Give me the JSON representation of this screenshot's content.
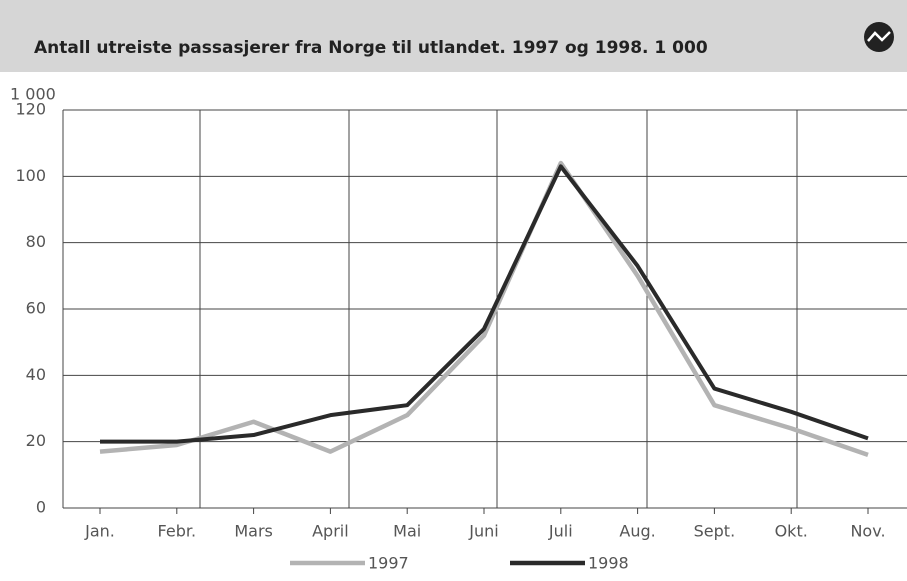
{
  "chart_data": {
    "type": "line",
    "title": "Antall utreiste passasjerer fra Norge til utlandet. 1997 og 1998. 1 000",
    "y_unit": "1 000",
    "categories": [
      "Jan.",
      "Febr.",
      "Mars",
      "April",
      "Mai",
      "Juni",
      "Juli",
      "Aug.",
      "Sept.",
      "Okt.",
      "Nov."
    ],
    "series": [
      {
        "name": "1997",
        "color": "#b3b3b3",
        "values": [
          17,
          19,
          26,
          17,
          28,
          52,
          104,
          70,
          31,
          24,
          16
        ]
      },
      {
        "name": "1998",
        "color": "#2a2a2a",
        "values": [
          20,
          20,
          22,
          28,
          31,
          54,
          103,
          73,
          36,
          29,
          21
        ]
      }
    ],
    "ylim": [
      0,
      120
    ],
    "yticks": [
      0,
      20,
      40,
      60,
      80,
      100,
      120
    ],
    "grid": true
  }
}
